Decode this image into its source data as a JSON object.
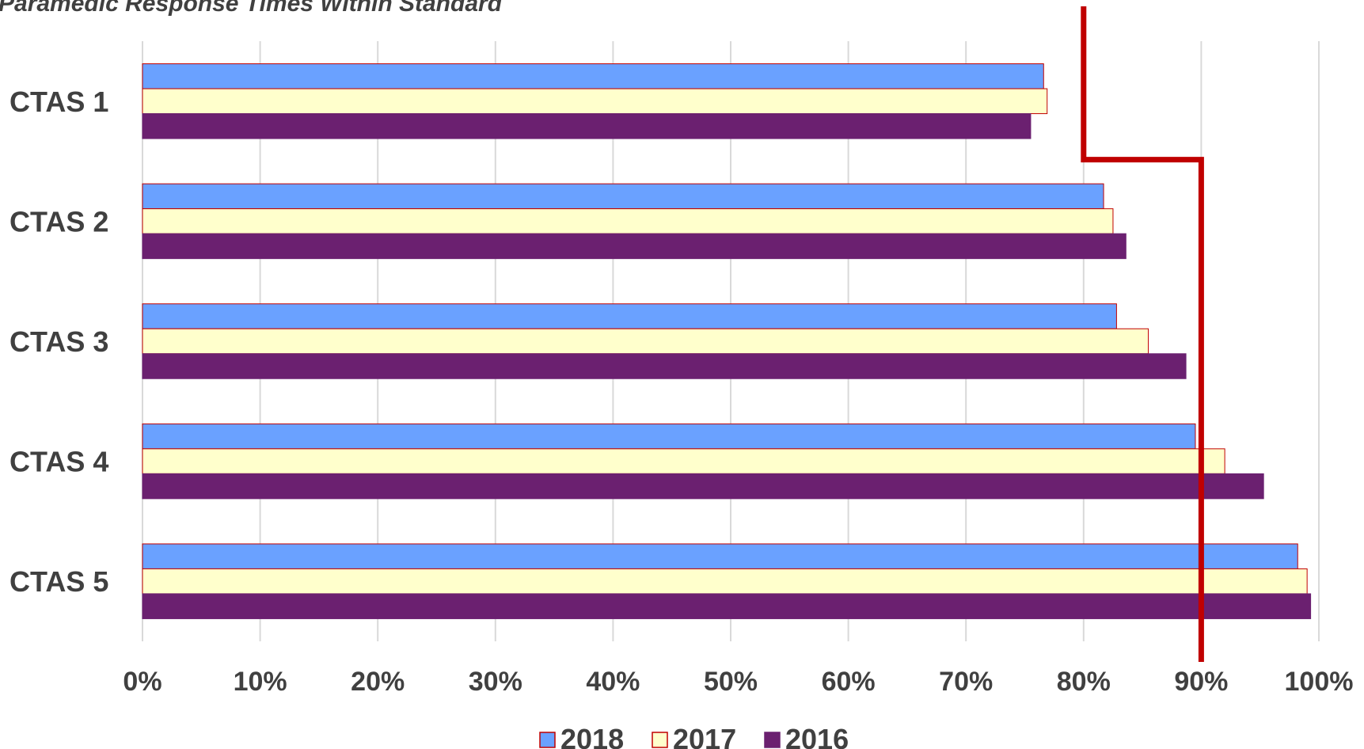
{
  "chart_data": {
    "type": "bar",
    "orientation": "horizontal",
    "title": "Paramedic Response Times Within Standard",
    "categories": [
      "CTAS 1",
      "CTAS 2",
      "CTAS 3",
      "CTAS 4",
      "CTAS 5"
    ],
    "series": [
      {
        "name": "2018",
        "color": "#6aa1ff",
        "border": "#c00000",
        "values": [
          0.766,
          0.817,
          0.828,
          0.895,
          0.982
        ]
      },
      {
        "name": "2017",
        "color": "#ffffcc",
        "border": "#c00000",
        "values": [
          0.769,
          0.825,
          0.855,
          0.92,
          0.99
        ]
      },
      {
        "name": "2016",
        "color": "#6b2070",
        "border": "#6b2070",
        "values": [
          0.755,
          0.836,
          0.887,
          0.953,
          0.993
        ]
      }
    ],
    "xlim": [
      0,
      1
    ],
    "x_ticks": [
      "0%",
      "10%",
      "20%",
      "30%",
      "40%",
      "50%",
      "60%",
      "70%",
      "80%",
      "90%",
      "100%"
    ],
    "grid": true,
    "legend_position": "bottom",
    "target_line": {
      "color": "#c00000",
      "steps": [
        {
          "category_from": "CTAS 1",
          "category_to": "CTAS 1",
          "value": 0.8
        },
        {
          "category_from": "CTAS 2",
          "category_to": "CTAS 5",
          "value": 0.9
        }
      ]
    }
  }
}
